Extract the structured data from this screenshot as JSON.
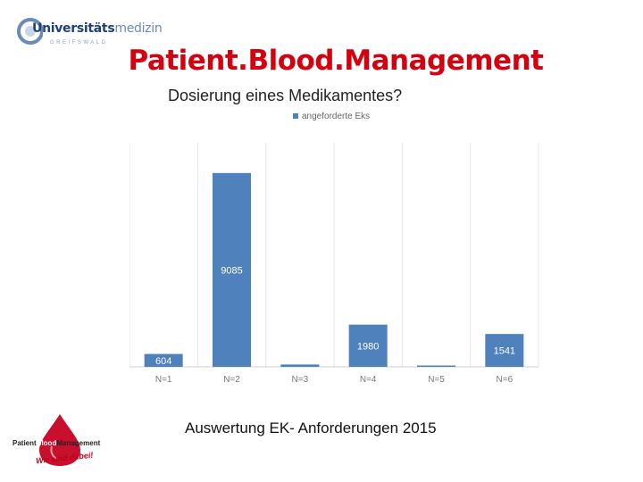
{
  "header": {
    "logo_text_a": "Universitäts",
    "logo_text_b": "medizin",
    "logo_city": "GREIFSWALD",
    "title": "Patient.Blood.Management",
    "subtitle": "Dosierung eines Medikamentes?"
  },
  "footer": {
    "caption": "Auswertung EK- Anforderungen 2015",
    "logo_part_a": "Patient",
    "logo_part_b": "Blood",
    "logo_part_c": "Management",
    "logo_tagline": "Wir sind dabei!"
  },
  "colors": {
    "title": "#d4000f",
    "bar": "#4f81bd",
    "grid": "#e3e3e3",
    "drop": "#c8102e"
  },
  "chart_data": {
    "type": "bar",
    "categories": [
      "N=1",
      "N=2",
      "N=3",
      "N=4",
      "N=5",
      "N=6"
    ],
    "series": [
      {
        "name": "angeforderte Eks",
        "values": [
          604,
          9085,
          110,
          1980,
          60,
          1541
        ]
      }
    ],
    "data_labels": [
      "604",
      "9085",
      "",
      "1980",
      "",
      "1541"
    ],
    "ylim": [
      0,
      10500
    ],
    "legend": "top-center",
    "grid": "vertical-category-separators"
  }
}
